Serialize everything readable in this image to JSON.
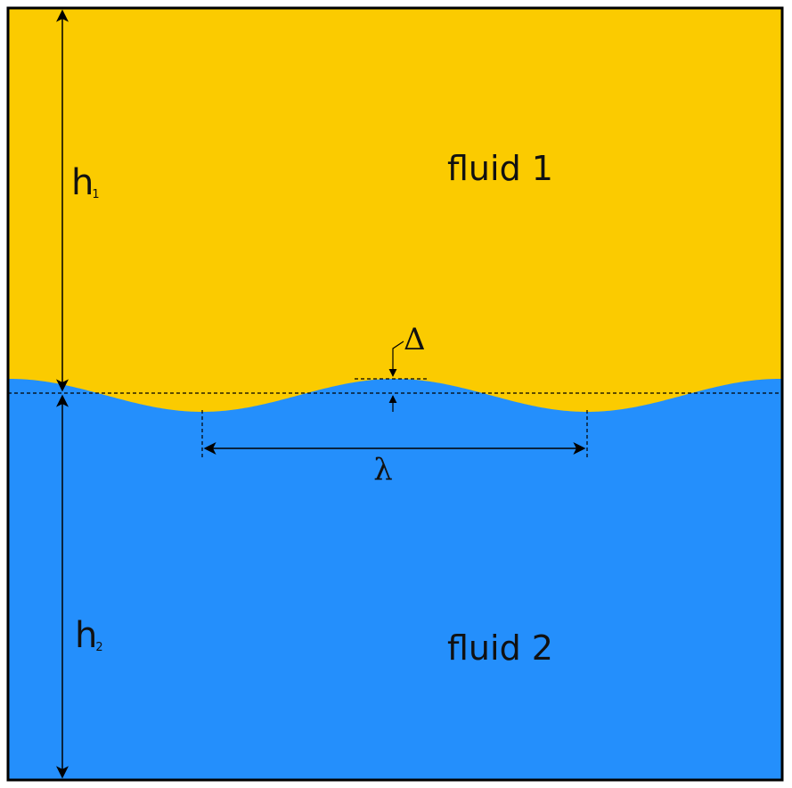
{
  "colors": {
    "fluid_1": "#FBCB00",
    "fluid_2": "#248FFC",
    "border": "#000000",
    "annotation": "#000000"
  },
  "fluids": {
    "upper_label": "fluid 1",
    "lower_label": "fluid 2"
  },
  "dimensions": {
    "upper_height": {
      "symbol": "h",
      "subscript": "1"
    },
    "lower_height": {
      "symbol": "h",
      "subscript": "2"
    },
    "wavelength": "λ",
    "amplitude": "Δ"
  }
}
